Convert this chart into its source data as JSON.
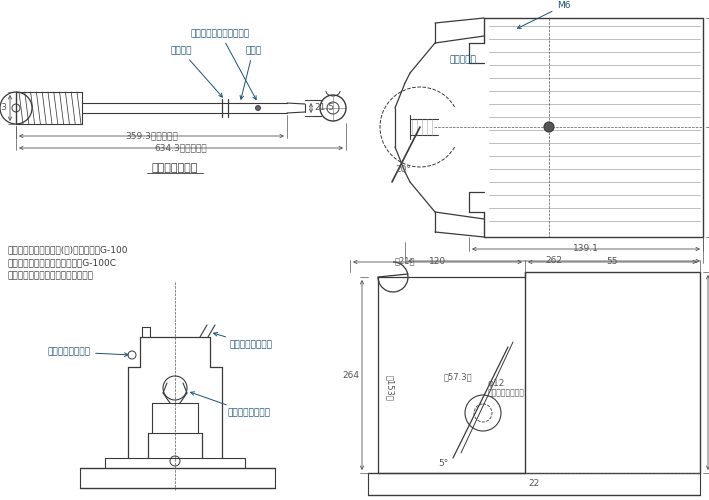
{
  "bg_color": "#ffffff",
  "line_color": "#3a3a3a",
  "dim_color": "#555555",
  "annot_color": "#1a5276",
  "text_notes": [
    "注１．型式　標準塗装(赤)タイプ　：G-100",
    "　　　ニッケルめっきタイプ：G-100C",
    "２．専用操作レバーが付属します。"
  ],
  "lever_label": "専用操作レバー"
}
